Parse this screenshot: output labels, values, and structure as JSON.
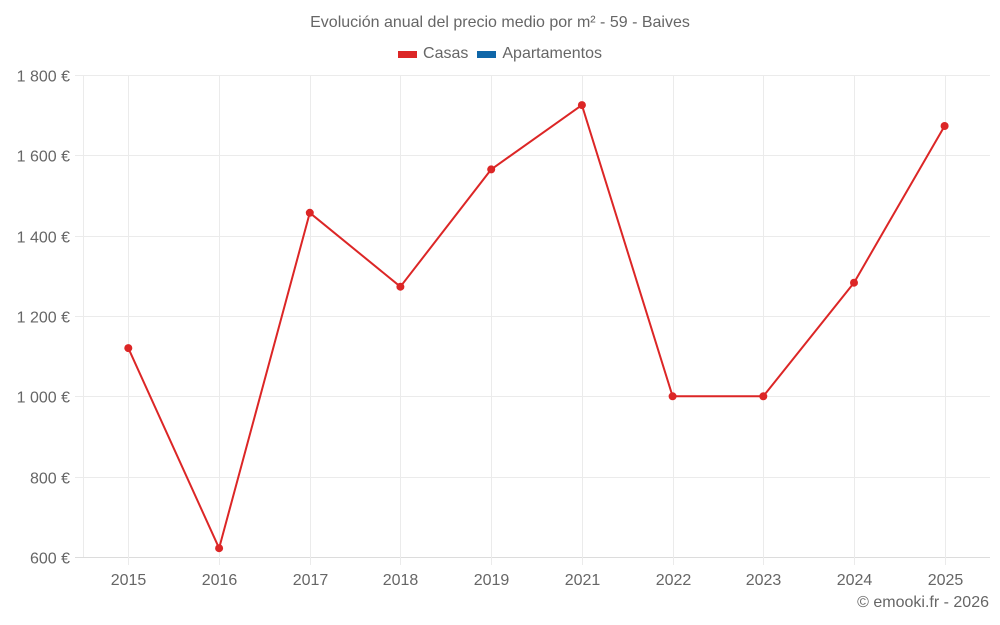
{
  "title": "Evolución anual del precio medio por m² - 59 - Baives",
  "legend": [
    {
      "label": "Casas",
      "color": "#dc2626"
    },
    {
      "label": "Apartamentos",
      "color": "#0f66a8"
    }
  ],
  "credit": "© emooki.fr - 2026",
  "colors": {
    "grid": "#ebebeb",
    "axis": "#dcdcdc",
    "line": "#dc2626"
  },
  "chart_data": {
    "type": "line",
    "title": "Evolución anual del precio medio por m² - 59 - Baives",
    "xlabel": "",
    "ylabel": "",
    "categories": [
      "2015",
      "2016",
      "2017",
      "2018",
      "2019",
      "2021",
      "2022",
      "2023",
      "2024",
      "2025"
    ],
    "series": [
      {
        "name": "Casas",
        "color": "#dc2626",
        "values": [
          1120,
          622,
          1457,
          1273,
          1565,
          1725,
          1000,
          1000,
          1283,
          1673
        ]
      },
      {
        "name": "Apartamentos",
        "color": "#0f66a8",
        "values": []
      }
    ],
    "ylim": [
      600,
      1800
    ],
    "yticks": [
      600,
      800,
      1000,
      1200,
      1400,
      1600,
      1800
    ],
    "ytick_labels": [
      "600 €",
      "800 €",
      "1 000 €",
      "1 200 €",
      "1 400 €",
      "1 600 €",
      "1 800 €"
    ],
    "grid": true,
    "legend_position": "top"
  }
}
